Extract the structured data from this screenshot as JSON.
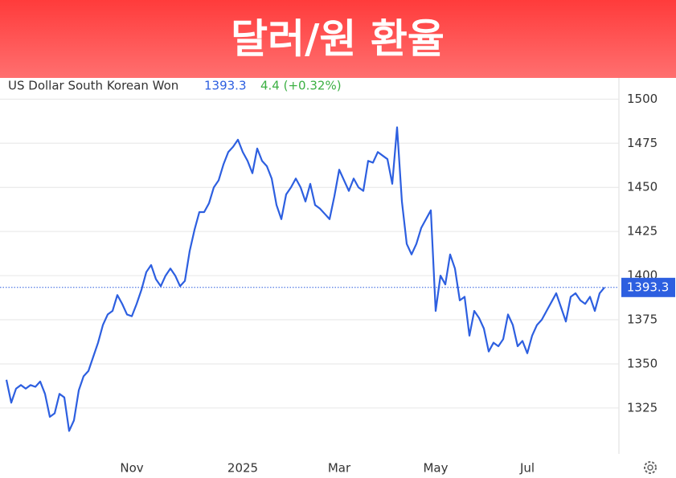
{
  "chart_data": {
    "type": "line",
    "title": "달러/원 환율",
    "series": [
      {
        "name": "US Dollar South Korean Won",
        "color": "#2d5fe0",
        "values": [
          1341,
          1328,
          1336,
          1338,
          1336,
          1338,
          1337,
          1340,
          1333,
          1320,
          1322,
          1333,
          1331,
          1312,
          1318,
          1335,
          1343,
          1346,
          1354,
          1362,
          1372,
          1378,
          1380,
          1389,
          1384,
          1378,
          1377,
          1384,
          1392,
          1402,
          1406,
          1398,
          1394,
          1400,
          1404,
          1400,
          1394,
          1397,
          1414,
          1426,
          1436,
          1436,
          1441,
          1450,
          1454,
          1463,
          1470,
          1473,
          1477,
          1470,
          1465,
          1458,
          1472,
          1465,
          1462,
          1455,
          1440,
          1432,
          1446,
          1450,
          1455,
          1450,
          1442,
          1452,
          1440,
          1438,
          1435,
          1432,
          1445,
          1460,
          1454,
          1448,
          1455,
          1450,
          1448,
          1465,
          1464,
          1470,
          1468,
          1466,
          1452,
          1484,
          1442,
          1418,
          1412,
          1418,
          1427,
          1432,
          1437,
          1380,
          1400,
          1395,
          1412,
          1404,
          1386,
          1388,
          1366,
          1380,
          1376,
          1370,
          1357,
          1362,
          1360,
          1364,
          1378,
          1372,
          1360,
          1363,
          1356,
          1366,
          1372,
          1375,
          1380,
          1385,
          1390,
          1382,
          1374,
          1388,
          1390,
          1386,
          1384,
          1388,
          1380,
          1390,
          1393.3
        ]
      }
    ],
    "categories": [
      null,
      null,
      null,
      null,
      null,
      null,
      null,
      null,
      null,
      null,
      null,
      null,
      null,
      null,
      null,
      null,
      null,
      null,
      null,
      null,
      null,
      null,
      null,
      null,
      null,
      null,
      "Nov",
      null,
      null,
      null,
      null,
      null,
      null,
      null,
      null,
      null,
      null,
      null,
      null,
      null,
      null,
      null,
      null,
      null,
      null,
      null,
      null,
      null,
      null,
      "2025",
      null,
      null,
      null,
      null,
      null,
      null,
      null,
      null,
      null,
      null,
      null,
      null,
      null,
      null,
      null,
      null,
      null,
      null,
      null,
      "Mar",
      null,
      null,
      null,
      null,
      null,
      null,
      null,
      null,
      null,
      null,
      null,
      null,
      null,
      null,
      null,
      null,
      null,
      null,
      null,
      "May",
      null,
      null,
      null,
      null,
      null,
      null,
      null,
      null,
      null,
      null,
      null,
      null,
      null,
      null,
      null,
      null,
      null,
      null,
      "Jul",
      null,
      null,
      null,
      null,
      null,
      null,
      null,
      null,
      null,
      null,
      null,
      null,
      null,
      null,
      null,
      null
    ],
    "last_value": 1393.3,
    "change": "4.4 (+0.32%)",
    "ylim": [
      1299,
      1512
    ],
    "yticks": [
      1325,
      1350,
      1375,
      1400,
      1425,
      1450,
      1475,
      1500
    ],
    "grid": true
  }
}
